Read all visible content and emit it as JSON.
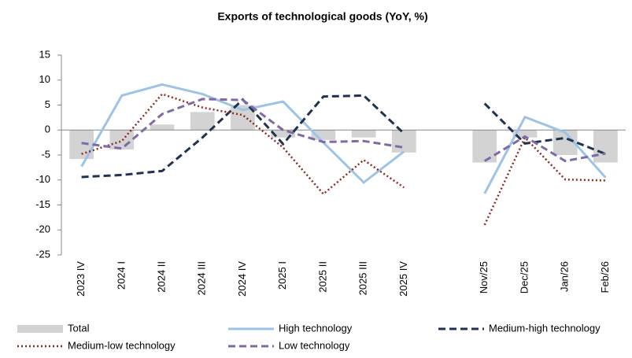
{
  "chart_data": {
    "type": "combo",
    "title": "Exports of technological goods (YoY, %)",
    "categories": [
      "2023 IV",
      "2024 I",
      "2024 II",
      "2024 III",
      "2024 IV",
      "2025 I",
      "2025 II",
      "2025 III",
      "2025 IV",
      null,
      "Nov/25",
      "Dec/25",
      "Jan/26",
      "Feb/26"
    ],
    "ylim": [
      -25,
      15
    ],
    "yticks": [
      -25,
      -20,
      -15,
      -10,
      -5,
      0,
      5,
      10,
      15
    ],
    "series": [
      {
        "name": "Total",
        "type": "bar",
        "color": "#d3d3d3",
        "values": [
          -5.8,
          -3.9,
          1.1,
          3.6,
          5.0,
          -1.5,
          -2.0,
          -1.5,
          -4.5,
          null,
          -6.5,
          -1.5,
          -5.0,
          -6.5
        ]
      },
      {
        "name": "High technology",
        "type": "line",
        "dash": "solid",
        "color": "#9dc3e6",
        "values": [
          -7.3,
          6.9,
          9.1,
          7.2,
          4.0,
          5.7,
          -2.5,
          -10.5,
          -4.3,
          null,
          -12.7,
          2.6,
          -0.5,
          -9.5
        ]
      },
      {
        "name": "Medium-high technology",
        "type": "line",
        "dash": "dashed",
        "color": "#1f3350",
        "values": [
          -9.4,
          -9.0,
          -8.2,
          -1.5,
          6.1,
          -2.8,
          6.7,
          6.9,
          -0.7,
          null,
          5.3,
          -2.7,
          -1.6,
          -4.8
        ]
      },
      {
        "name": "Medium-low technology",
        "type": "line",
        "dash": "dotted",
        "color": "#8b2c24",
        "values": [
          -4.8,
          -2.2,
          7.2,
          4.5,
          3.0,
          -3.5,
          -12.8,
          -6.0,
          -11.5,
          null,
          -19.0,
          -1.5,
          -9.9,
          -10.1
        ]
      },
      {
        "name": "Low technology",
        "type": "line",
        "dash": "dashed",
        "color": "#7f6aa6",
        "values": [
          -2.6,
          -3.7,
          3.2,
          6.2,
          6.0,
          0.0,
          -2.4,
          -2.2,
          -3.5,
          null,
          -6.2,
          -1.3,
          -6.2,
          -4.7
        ]
      }
    ]
  }
}
